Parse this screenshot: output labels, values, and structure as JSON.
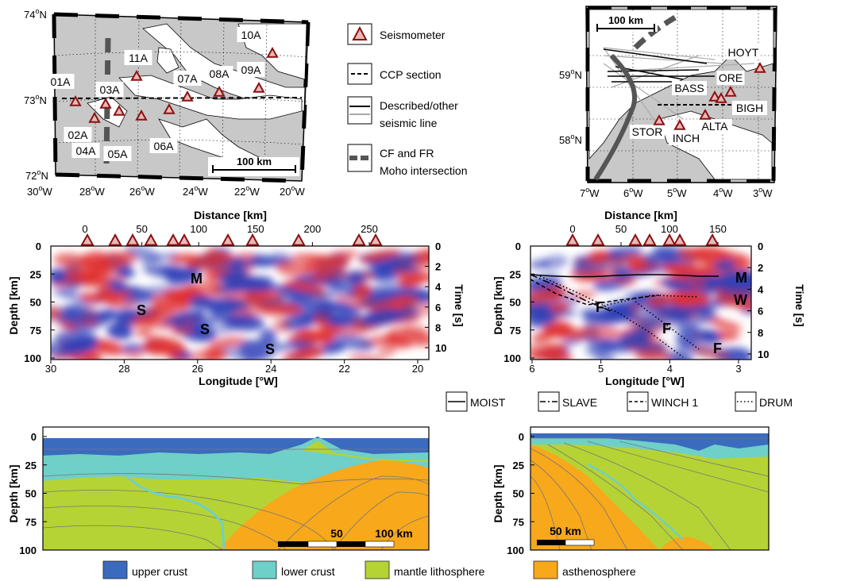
{
  "map_left": {
    "lat_labels": [
      "74",
      "73",
      "72"
    ],
    "lon_labels": [
      "30",
      "28",
      "26",
      "24",
      "22",
      "20"
    ],
    "lat_suffix": "N",
    "lon_suffix": "W",
    "stations": [
      "01A",
      "02A",
      "03A",
      "04A",
      "05A",
      "06A",
      "07A",
      "08A",
      "09A",
      "10A",
      "11A"
    ],
    "scalebar": "100 km"
  },
  "legend_top": {
    "seismometer": "Seismometer",
    "ccp": "CCP section",
    "described_1": "Described/other",
    "described_2": "seismic line",
    "moho_1": "CF and FR",
    "moho_2": "Moho intersection"
  },
  "map_right": {
    "lat_labels": [
      "59",
      "58"
    ],
    "lon_labels": [
      "7",
      "6",
      "5",
      "4",
      "3"
    ],
    "lat_suffix": "N",
    "lon_suffix": "W",
    "stations": [
      "HOYT",
      "ORE",
      "BASS",
      "BIGH",
      "STOR",
      "INCH",
      "ALTA"
    ],
    "scalebar": "100 km"
  },
  "section_left": {
    "distance_title": "Distance [km]",
    "distance_ticks": [
      "0",
      "50",
      "100",
      "150",
      "200",
      "250"
    ],
    "depth_title": "Depth [km]",
    "depth_ticks": [
      "0",
      "25",
      "50",
      "75",
      "100"
    ],
    "time_title": "Time [s]",
    "time_ticks": [
      "0",
      "2",
      "4",
      "6",
      "8",
      "10"
    ],
    "lon_title": "Longitude [°W]",
    "lon_ticks": [
      "30",
      "28",
      "26",
      "24",
      "22",
      "20"
    ],
    "labels": [
      "M",
      "S",
      "S",
      "S"
    ]
  },
  "section_right": {
    "distance_title": "Distance [km]",
    "distance_ticks": [
      "0",
      "50",
      "100",
      "150"
    ],
    "depth_title": "Depth [km]",
    "depth_ticks": [
      "0",
      "25",
      "50",
      "75",
      "100"
    ],
    "time_title": "Time [s]",
    "time_ticks": [
      "0",
      "2",
      "4",
      "6",
      "8",
      "10"
    ],
    "lon_title": "Longitude [°W]",
    "lon_ticks": [
      "6",
      "5",
      "4",
      "3"
    ],
    "labels": [
      "M",
      "W",
      "F",
      "F",
      "F"
    ]
  },
  "line_legend": [
    "MOIST",
    "SLAVE",
    "WINCH 1",
    "DRUM"
  ],
  "model_left": {
    "depth_title": "Depth [km]",
    "depth_ticks": [
      "0",
      "25",
      "50",
      "75",
      "100"
    ],
    "scale_labels": [
      "50",
      "100 km"
    ]
  },
  "model_right": {
    "depth_title": "Depth [km]",
    "depth_ticks": [
      "0",
      "25",
      "50",
      "75",
      "100"
    ],
    "scale_labels": [
      "50 km"
    ]
  },
  "layer_legend": [
    {
      "label": "upper crust",
      "color": "#3a6bbf"
    },
    {
      "label": "lower crust",
      "color": "#6fcfc9"
    },
    {
      "label": "mantle lithosphere",
      "color": "#b5d334"
    },
    {
      "label": "asthenosphere",
      "color": "#f7a81b"
    }
  ],
  "colors": {
    "upper_crust": "#3a6bbf",
    "lower_crust": "#6fcfc9",
    "mantle": "#b5d334",
    "asthenosphere": "#f7a81b",
    "positive": "#e03030",
    "negative": "#3040b8",
    "station_fill": "#e8b8b8",
    "station_edge": "#8a1010",
    "land": "#c8c8c8",
    "moho_line": "#555555"
  }
}
